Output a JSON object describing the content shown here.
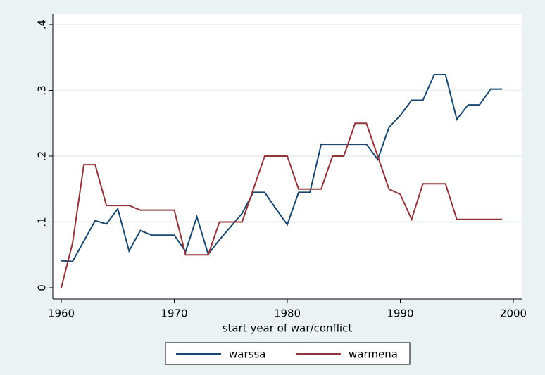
{
  "chart_data": {
    "type": "line",
    "x": [
      1960,
      1961,
      1962,
      1963,
      1964,
      1965,
      1966,
      1967,
      1968,
      1969,
      1970,
      1971,
      1972,
      1973,
      1974,
      1975,
      1976,
      1977,
      1978,
      1979,
      1980,
      1981,
      1982,
      1983,
      1984,
      1985,
      1986,
      1987,
      1988,
      1989,
      1990,
      1991,
      1992,
      1993,
      1994,
      1995,
      1996,
      1997,
      1998,
      1999
    ],
    "series": [
      {
        "name": "warssa",
        "color": "#1a476f",
        "values": [
          0.041,
          0.04,
          0.071,
          0.102,
          0.097,
          0.12,
          0.056,
          0.087,
          0.08,
          0.08,
          0.08,
          0.055,
          0.108,
          0.051,
          0.073,
          0.093,
          0.113,
          0.145,
          0.145,
          0.12,
          0.096,
          0.145,
          0.145,
          0.218,
          0.218,
          0.218,
          0.218,
          0.218,
          0.195,
          0.244,
          0.262,
          0.285,
          0.285,
          0.324,
          0.324,
          0.256,
          0.278,
          0.278,
          0.302,
          0.302
        ]
      },
      {
        "name": "warmena",
        "color": "#90353b",
        "values": [
          0,
          0.068,
          0.187,
          0.187,
          0.125,
          0.125,
          0.125,
          0.118,
          0.118,
          0.118,
          0.118,
          0.05,
          0.05,
          0.05,
          0.1,
          0.1,
          0.1,
          0.15,
          0.2,
          0.2,
          0.2,
          0.15,
          0.15,
          0.15,
          0.2,
          0.2,
          0.25,
          0.25,
          0.2,
          0.15,
          0.142,
          0.104,
          0.158,
          0.158,
          0.158,
          0.104,
          0.104,
          0.104,
          0.104,
          0.104
        ]
      }
    ],
    "xlabel": "start year of war/conflict",
    "xlim": [
      1960,
      2000
    ],
    "xticks": [
      1960,
      1970,
      1980,
      1990,
      2000
    ],
    "ylim": [
      0,
      0.4
    ],
    "yticks": [
      0,
      {
        "value": 0.1,
        "label": ".1"
      },
      {
        "value": 0.2,
        "label": ".2"
      },
      {
        "value": 0.3,
        "label": ".3"
      },
      {
        "value": 0.4,
        "label": ".4"
      }
    ],
    "grid": true
  }
}
